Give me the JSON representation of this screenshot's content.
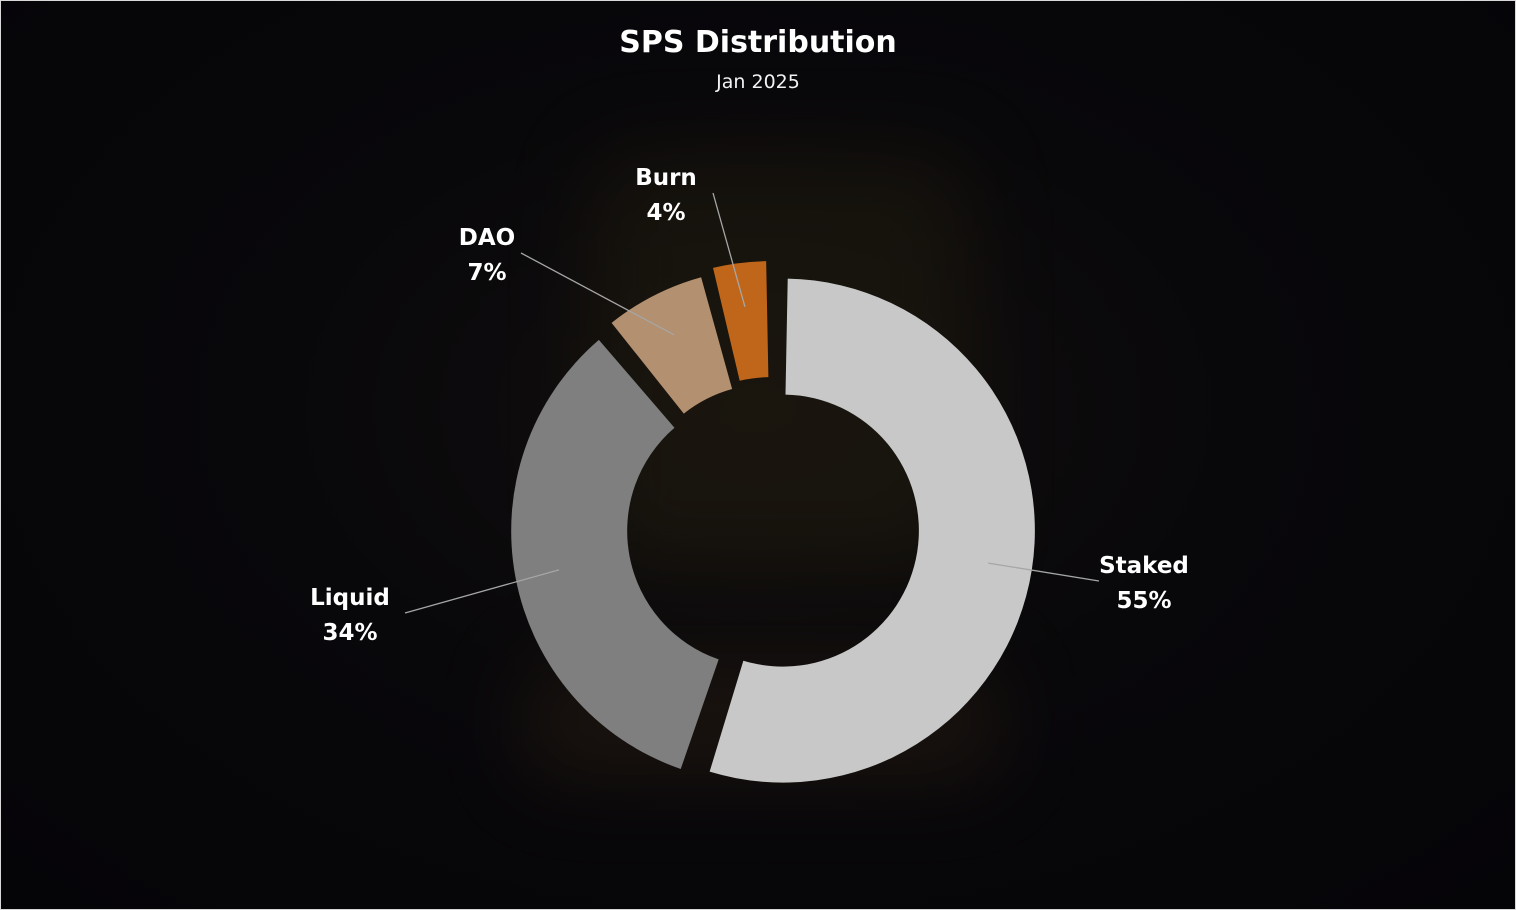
{
  "chart_data": {
    "type": "pie",
    "variant": "donut",
    "title": "SPS Distribution",
    "subtitle": "Jan 2025",
    "slices": [
      {
        "label": "Staked",
        "value": 55,
        "value_label": "55%",
        "color": "#c8c8c8"
      },
      {
        "label": "Liquid",
        "value": 34,
        "value_label": "34%",
        "color": "#7f7f7f"
      },
      {
        "label": "DAO",
        "value": 7,
        "value_label": "7%",
        "color": "#b39070"
      },
      {
        "label": "Burn",
        "value": 4,
        "value_label": "4%",
        "color": "#c0661a"
      }
    ],
    "legend": "none",
    "background": "#050407",
    "text_color": "#ffffff"
  }
}
